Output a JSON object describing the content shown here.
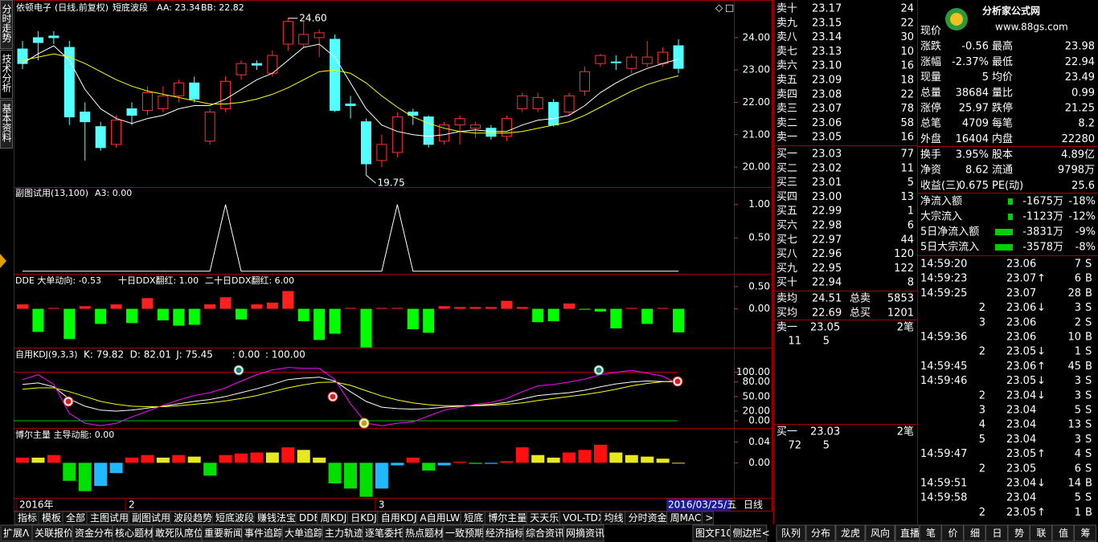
{
  "side_tabs": [
    "分时走势",
    "技术分析",
    "基本资料"
  ],
  "kline": {
    "title": "依顿电子",
    "subtitle": "(日线,前复权)",
    "indicator": "短底波段",
    "aa": "AA: 23.34",
    "bb": "BB: 22.82",
    "ylim": [
      19.38,
      25.14
    ],
    "yticks": [
      {
        "value": 24,
        "label": "24.00"
      },
      {
        "value": 23,
        "label": "23.00"
      },
      {
        "value": 22,
        "label": "22.00"
      },
      {
        "value": 21,
        "label": "21.00"
      },
      {
        "value": 20,
        "label": "20.00"
      }
    ],
    "up_color": "#ff3232",
    "down_color": "#54ffff",
    "candles": {
      "open": [
        23.65,
        24.0,
        24.05,
        23.7,
        21.7,
        21.25,
        20.7,
        21.8,
        21.75,
        21.8,
        22.2,
        22.6,
        20.8,
        21.8,
        22.85,
        23.2,
        22.9,
        23.8,
        23.8,
        24.0,
        23.95,
        21.95,
        21.4,
        20.2,
        20.45,
        21.7,
        21.55,
        20.8,
        21.3,
        21.2,
        21.2,
        20.95,
        21.8,
        21.8,
        22.0,
        21.7,
        22.35,
        23.2,
        23.25,
        23.05,
        23.2,
        23.2,
        23.75
      ],
      "high": [
        23.9,
        24.2,
        24.2,
        23.9,
        22.0,
        21.4,
        21.6,
        22.0,
        22.5,
        22.5,
        22.7,
        22.8,
        21.8,
        22.8,
        23.3,
        23.3,
        23.6,
        24.6,
        24.5,
        24.25,
        24.1,
        22.2,
        21.5,
        21.0,
        21.7,
        21.8,
        21.6,
        21.4,
        21.6,
        21.4,
        21.3,
        21.6,
        22.3,
        22.3,
        22.1,
        22.3,
        23.1,
        23.5,
        23.45,
        23.5,
        23.9,
        23.7,
        23.95
      ],
      "low": [
        23.03,
        23.3,
        23.8,
        21.3,
        20.2,
        20.5,
        20.6,
        21.3,
        21.6,
        21.7,
        22.0,
        22.0,
        20.7,
        21.7,
        22.7,
        23.0,
        22.8,
        23.6,
        23.7,
        23.4,
        21.7,
        21.5,
        19.75,
        20.0,
        20.3,
        21.3,
        20.6,
        20.7,
        20.7,
        20.9,
        20.85,
        20.8,
        21.7,
        21.7,
        21.25,
        21.6,
        22.2,
        23.1,
        23.0,
        22.9,
        23.1,
        23.1,
        22.9
      ],
      "close": [
        23.2,
        23.85,
        24.0,
        21.55,
        21.4,
        20.6,
        21.45,
        21.6,
        22.3,
        22.2,
        22.6,
        22.1,
        21.7,
        22.65,
        23.2,
        23.15,
        23.45,
        24.5,
        24.1,
        24.15,
        21.75,
        21.9,
        20.1,
        20.7,
        21.55,
        21.6,
        20.7,
        21.3,
        21.5,
        21.3,
        20.95,
        21.5,
        22.2,
        22.15,
        21.3,
        22.2,
        22.95,
        23.45,
        23.23,
        23.4,
        23.4,
        23.55,
        23.05
      ]
    },
    "lines": [
      {
        "color": "#ffffff",
        "values": [
          23.2,
          23.5,
          23.75,
          23.3,
          22.4,
          21.8,
          21.5,
          21.35,
          21.5,
          21.6,
          21.8,
          21.9,
          21.9,
          22.1,
          22.4,
          22.7,
          22.9,
          23.3,
          23.7,
          23.8,
          23.4,
          22.6,
          21.8,
          21.3,
          21.1,
          21.0,
          20.95,
          21.0,
          21.1,
          21.15,
          21.1,
          21.1,
          21.3,
          21.45,
          21.5,
          21.6,
          21.9,
          22.3,
          22.6,
          22.85,
          23.05,
          23.2,
          23.34
        ]
      },
      {
        "color": "#ffff00",
        "values": [
          23.3,
          23.4,
          23.5,
          23.4,
          23.2,
          22.95,
          22.7,
          22.5,
          22.35,
          22.25,
          22.15,
          22.05,
          21.95,
          21.95,
          22.0,
          22.1,
          22.25,
          22.45,
          22.7,
          22.95,
          23.0,
          22.9,
          22.6,
          22.2,
          21.85,
          21.55,
          21.35,
          21.2,
          21.1,
          21.05,
          21.05,
          21.05,
          21.1,
          21.2,
          21.3,
          21.4,
          21.6,
          21.85,
          22.1,
          22.35,
          22.55,
          22.7,
          22.82
        ]
      }
    ],
    "high_label": "24.60",
    "low_label": "19.75"
  },
  "sub1": {
    "title": "副图试用(13,100)",
    "a3": "A3: 0.00",
    "ylim": [
      -0.04,
      1.25
    ],
    "yticks": [
      {
        "value": 1,
        "label": "1.00"
      },
      {
        "value": 0.5,
        "label": "0.50"
      }
    ],
    "color": "#ffffff",
    "values": [
      0,
      0,
      0,
      0,
      0,
      0,
      0,
      0,
      0,
      0,
      0,
      0,
      0,
      1,
      0,
      0,
      0,
      0,
      0,
      0,
      0,
      0,
      0,
      0,
      1,
      0,
      0,
      0,
      0,
      0,
      0,
      0,
      0,
      0,
      0,
      0,
      0,
      0,
      0,
      0,
      0,
      0,
      0
    ]
  },
  "dde": {
    "title": "DDE 大单动向: -0.53",
    "ddx10": "十日DDX翻红: 1.00",
    "ddx20": "二十日DDX翻红: 6.00",
    "ylim": [
      -0.875,
      0.77
    ],
    "yticks": [
      {
        "value": 0.5,
        "label": "0.50"
      },
      {
        "value": 0,
        "label": "0.00"
      }
    ],
    "pos_color": "#ff2020",
    "neg_color": "#00ff00",
    "values": [
      0.1,
      -0.52,
      0.02,
      -0.68,
      0.06,
      -0.34,
      0.1,
      -0.32,
      0.24,
      -0.26,
      -0.38,
      -0.36,
      0.1,
      0.26,
      -0.24,
      0.1,
      0.14,
      0.4,
      -0.28,
      -0.7,
      -0.56,
      0.02,
      -0.87,
      0.02,
      0.02,
      -0.46,
      -0.54,
      0.06,
      0.04,
      0.04,
      0.04,
      0.18,
      0.04,
      -0.3,
      -0.28,
      0.12,
      -0.02,
      -0.06,
      -0.44,
      0.02,
      -0.34,
      0.02,
      -0.53
    ]
  },
  "kdj": {
    "title": "自用KDJ(9,3,3)",
    "ylim": [
      -14.8,
      149
    ],
    "yticks": [
      {
        "value": 100,
        "label": "100.00"
      },
      {
        "value": 80,
        "label": "80.00"
      },
      {
        "value": 50,
        "label": "50.00"
      },
      {
        "value": 20,
        "label": "20.00"
      },
      {
        "value": 0,
        "label": "0.00"
      }
    ],
    "series": [
      {
        "name": "K: 79.82",
        "color": "#ffffff",
        "values": [
          75,
          78,
          70,
          45,
          30,
          22,
          20,
          22,
          26,
          30,
          35,
          40,
          44,
          50,
          58,
          66,
          75,
          85,
          88,
          90,
          82,
          60,
          40,
          28,
          25,
          24,
          25,
          28,
          30,
          32,
          34,
          38,
          45,
          52,
          55,
          58,
          63,
          70,
          76,
          80,
          82,
          81,
          79.82
        ]
      },
      {
        "name": "D: 82.01",
        "color": "#ffff00",
        "values": [
          65,
          68,
          68,
          60,
          50,
          40,
          34,
          30,
          29,
          29,
          31,
          34,
          37,
          41,
          46,
          52,
          60,
          68,
          74,
          79,
          80,
          73,
          62,
          51,
          43,
          37,
          33,
          31,
          31,
          31,
          32,
          34,
          37,
          42,
          46,
          50,
          54,
          59,
          65,
          72,
          77,
          80.5,
          82.01
        ]
      },
      {
        "name": "J: 75.45",
        "color": "#ff00ff",
        "values": [
          85,
          95,
          75,
          15,
          -5,
          -10,
          -5,
          8,
          20,
          32,
          43,
          52,
          58,
          68,
          82,
          95,
          105,
          110,
          108,
          108,
          85,
          35,
          -5,
          -10,
          -5,
          -2,
          10,
          22,
          28,
          34,
          38,
          46,
          60,
          72,
          75,
          80,
          86,
          95,
          100,
          104,
          98,
          92,
          75.45
        ]
      }
    ],
    "ref_lines": [
      {
        "value": 0,
        "label": ": 0.00",
        "color": "#00c000"
      },
      {
        "value": 100,
        "label": ": 100.00",
        "color": "#d00000"
      }
    ]
  },
  "bor": {
    "title": "博尔主量 主导动能: 0.00",
    "ylim": [
      -0.068,
      0.066
    ],
    "yticks": [
      {
        "value": 0.04,
        "label": "0.04"
      },
      {
        "value": 0,
        "label": "0.00"
      }
    ],
    "rise_color": "#ff1010",
    "ease_color": "#e8e820",
    "drop_color": "#00e000",
    "recover_color": "#20b8ff",
    "values": [
      0.01,
      0.01,
      0.015,
      -0.035,
      -0.055,
      -0.045,
      -0.02,
      0.01,
      0.015,
      0.01,
      0.015,
      0.012,
      -0.025,
      0.015,
      0.018,
      0.02,
      0.02,
      0.03,
      0.025,
      0.01,
      -0.04,
      -0.05,
      -0.066,
      -0.05,
      -0.005,
      0.01,
      -0.015,
      -0.005,
      0.002,
      -0.002,
      -0.002,
      0.003,
      0.03,
      0.015,
      0.01,
      0.02,
      0.025,
      0.035,
      0.02,
      0.015,
      0.012,
      0.008,
      0.0
    ]
  },
  "dates": [
    "2016年",
    null,
    null,
    null,
    null,
    null,
    null,
    "2",
    null,
    null,
    null,
    null,
    null,
    null,
    null,
    null,
    null,
    null,
    null,
    null,
    null,
    null,
    null,
    "3",
    null,
    null,
    null,
    null,
    null,
    null,
    null,
    null,
    null,
    null,
    null,
    null,
    null,
    null,
    null,
    null,
    null,
    null,
    null
  ],
  "cursor_date": "2016/03/25/五",
  "period": "日线",
  "tabs": [
    "指标",
    "模板",
    "全部",
    "主图试用",
    "副图试用",
    "波段趋势",
    "短底波段",
    "赚钱法宝",
    "DDE",
    "周KDJ",
    "日KDJ",
    "自用KDJ",
    "A自用LWR",
    "短底",
    "博尔主量",
    "天天乐",
    "VOL-TDX",
    "均线",
    "分时资金",
    "周MACD",
    ">"
  ],
  "toolbar": [
    "扩展Λ",
    "关联报价",
    "资金分布",
    "核心题材",
    "敢死队席位",
    "重要新闻",
    "事件追踪",
    "大单追踪",
    "主力轨迹",
    "逐笔委托",
    "热点题材",
    "一致预期",
    "经济指标",
    "综合资讯",
    "网摘资讯"
  ],
  "toolbar_right": [
    "图文F10",
    "侧边栏<"
  ],
  "panel_tabs": [
    "队列",
    "分布",
    "龙虎",
    "风向",
    "直播"
  ],
  "detail_tabs": [
    "笔",
    "价",
    "细",
    "日",
    "势",
    "联",
    "值",
    "筹"
  ],
  "orderbook": {
    "asks": [
      {
        "label": "卖十",
        "price": "23.17",
        "vol": "24"
      },
      {
        "label": "卖九",
        "price": "23.15",
        "vol": "22"
      },
      {
        "label": "卖八",
        "price": "23.14",
        "vol": "30"
      },
      {
        "label": "卖七",
        "price": "23.13",
        "vol": "10"
      },
      {
        "label": "卖六",
        "price": "23.10",
        "vol": "16"
      },
      {
        "label": "卖五",
        "price": "23.09",
        "vol": "18"
      },
      {
        "label": "卖四",
        "price": "23.08",
        "vol": "22"
      },
      {
        "label": "卖三",
        "price": "23.07",
        "vol": "78"
      },
      {
        "label": "卖二",
        "price": "23.06",
        "vol": "58"
      },
      {
        "label": "卖一",
        "price": "23.05",
        "vol": "16"
      }
    ],
    "bids": [
      {
        "label": "买一",
        "price": "23.03",
        "vol": "77"
      },
      {
        "label": "买二",
        "price": "23.02",
        "vol": "11"
      },
      {
        "label": "买三",
        "price": "23.01",
        "vol": "5"
      },
      {
        "label": "买四",
        "price": "23.00",
        "vol": "13"
      },
      {
        "label": "买五",
        "price": "22.99",
        "vol": "1"
      },
      {
        "label": "买六",
        "price": "22.98",
        "vol": "6"
      },
      {
        "label": "买七",
        "price": "22.97",
        "vol": "44"
      },
      {
        "label": "买八",
        "price": "22.96",
        "vol": "120"
      },
      {
        "label": "买九",
        "price": "22.95",
        "vol": "122"
      },
      {
        "label": "买十",
        "price": "22.94",
        "vol": "8"
      }
    ],
    "summary": [
      {
        "l1": "卖均",
        "v1": "24.51",
        "c1": "#ff3232",
        "l2": "总卖",
        "v2": "5853"
      },
      {
        "l1": "买均",
        "v1": "22.69",
        "c1": "#00e000",
        "l2": "总买",
        "v2": "1201"
      }
    ],
    "queues": [
      {
        "label": "卖一",
        "price": "23.05",
        "count": "2笔",
        "vols": [
          "11",
          "5"
        ]
      },
      {
        "label": "买一",
        "price": "23.03",
        "count": "2笔",
        "vols": [
          "72",
          "5"
        ]
      }
    ]
  },
  "quote": {
    "logo": "分析家公式网",
    "logo_url": "www.88gs.com",
    "stats": [
      {
        "l1": "现价"
      },
      {
        "l1": "涨跌",
        "v1": "-0.56",
        "c1": "#00e000",
        "l2": "最高",
        "v2": "23.98",
        "c2": "#ff3232"
      },
      {
        "l1": "涨幅",
        "v1": "-2.37%",
        "c1": "#00e000",
        "l2": "最低",
        "v2": "22.94",
        "c2": "#00e000"
      },
      {
        "l1": "现量",
        "v1": "5",
        "c1": "#ff3232",
        "l2": "均价",
        "v2": "23.49",
        "c2": "#00e000"
      },
      {
        "l1": "总量",
        "v1": "38684",
        "c1": "#ffff00",
        "l2": "量比",
        "v2": "0.99",
        "c2": "#ffff00"
      },
      {
        "l1": "涨停",
        "v1": "25.97",
        "c1": "#ff3232",
        "l2": "跌停",
        "v2": "21.25",
        "c2": "#00e000"
      },
      {
        "l1": "总笔",
        "v1": "4709",
        "c1": "#ffffff",
        "l2": "每笔",
        "v2": "8.2",
        "c2": "#ffffff"
      },
      {
        "l1": "外盘",
        "v1": "16404",
        "c1": "#ff3232",
        "l2": "内盘",
        "v2": "22280",
        "c2": "#00e000"
      },
      {
        "l1": "换手",
        "v1": "3.95%",
        "c1": "#ffffff",
        "l2": "股本",
        "v2": "4.89亿",
        "c2": "#ffffff"
      },
      {
        "l1": "净资",
        "v1": "8.62",
        "c1": "#ffffff",
        "l2": "流通",
        "v2": "9798万",
        "c2": "#ffffff"
      },
      {
        "l1": "收益(三)",
        "v1": "0.675",
        "c1": "#ffffff",
        "l2": "PE(动)",
        "v2": "25.6",
        "c2": "#ffffff"
      }
    ],
    "flows": [
      {
        "label": "净流入额",
        "value": "-1675万",
        "pct": "-18%"
      },
      {
        "label": "大宗流入",
        "value": "-1123万",
        "pct": "-12%"
      },
      {
        "label": "5日净流入额",
        "value": "-3831万",
        "pct": "-9%"
      },
      {
        "label": "5日大宗流入",
        "value": "-3578万",
        "pct": "-8%"
      }
    ],
    "trades": [
      {
        "t": "14:59:20",
        "p": "23.06",
        "v": "7",
        "s": "S"
      },
      {
        "t": "14:59:23",
        "p": "23.07",
        "a": "↑",
        "v": "6",
        "s": "B"
      },
      {
        "t": "14:59:25",
        "p": "23.07",
        "v": "28",
        "s": "B"
      },
      {
        "t": "2",
        "p": "23.06",
        "a": "↓",
        "v": "3",
        "s": "S"
      },
      {
        "t": "3",
        "p": "23.06",
        "v": "2",
        "s": "S"
      },
      {
        "t": "14:59:36",
        "p": "23.06",
        "v": "10",
        "s": "B"
      },
      {
        "t": "2",
        "p": "23.05",
        "a": "↓",
        "v": "1",
        "s": "S"
      },
      {
        "t": "14:59:45",
        "p": "23.06",
        "a": "↑",
        "v": "45",
        "s": "B"
      },
      {
        "t": "14:59:46",
        "p": "23.05",
        "a": "↓",
        "v": "3",
        "s": "S"
      },
      {
        "t": "2",
        "p": "23.04",
        "a": "↓",
        "v": "3",
        "s": "S"
      },
      {
        "t": "3",
        "p": "23.04",
        "v": "5",
        "s": "S"
      },
      {
        "t": "4",
        "p": "23.04",
        "v": "13",
        "s": "S"
      },
      {
        "t": "5",
        "p": "23.04",
        "v": "3",
        "s": "S"
      },
      {
        "t": "14:59:47",
        "p": "23.05",
        "a": "↑",
        "v": "4",
        "s": "S"
      },
      {
        "t": "2",
        "p": "23.05",
        "v": "6",
        "s": "S"
      },
      {
        "t": "14:59:51",
        "p": "23.04",
        "a": "↓",
        "v": "14",
        "s": "B"
      },
      {
        "t": "14:59:58",
        "p": "23.04",
        "v": "5",
        "s": "S"
      },
      {
        "t": "2",
        "p": "23.05",
        "a": "↑",
        "v": "1",
        "s": "B"
      }
    ]
  }
}
